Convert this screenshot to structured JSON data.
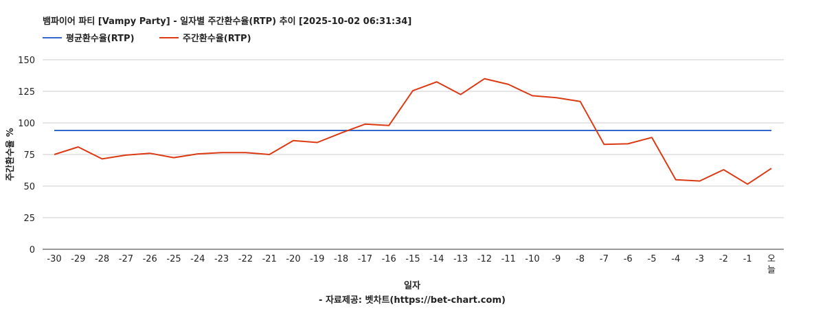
{
  "chart_data": {
    "type": "line",
    "title": "뱀파이어 파티 [Vampy Party] - 일자별 주간환수율(RTP) 추이 [2025-10-02 06:31:34]",
    "xlabel": "일자",
    "ylabel": "주간환수율 %",
    "ylim": [
      0,
      150
    ],
    "yticks": [
      "0",
      "25",
      "50",
      "75",
      "100",
      "125",
      "150"
    ],
    "grid": true,
    "legend_position": "top-left",
    "categories": [
      "-30",
      "-29",
      "-28",
      "-27",
      "-26",
      "-25",
      "-24",
      "-23",
      "-22",
      "-21",
      "-20",
      "-19",
      "-18",
      "-17",
      "-16",
      "-15",
      "-14",
      "-13",
      "-12",
      "-11",
      "-10",
      "-9",
      "-8",
      "-7",
      "-6",
      "-5",
      "-4",
      "-3",
      "-2",
      "-1",
      "오늘"
    ],
    "series": [
      {
        "name": "평균환수율(RTP)",
        "color": "#3366cc",
        "values": [
          94,
          94,
          94,
          94,
          94,
          94,
          94,
          94,
          94,
          94,
          94,
          94,
          94,
          94,
          94,
          94,
          94,
          94,
          94,
          94,
          94,
          94,
          94,
          94,
          94,
          94,
          94,
          94,
          94,
          94,
          94
        ]
      },
      {
        "name": "주간환수율(RTP)",
        "color": "#dc3912",
        "values": [
          75,
          81,
          71.5,
          74.5,
          76,
          72.5,
          75.5,
          76.5,
          76.5,
          75,
          86,
          84.5,
          92,
          99,
          98,
          125.5,
          132.5,
          122.5,
          135,
          130.5,
          121.5,
          120,
          117,
          83,
          83.5,
          88.5,
          55,
          54,
          63,
          51.5,
          64
        ]
      }
    ]
  },
  "footer": "- 자료제공: 벳차트(https://bet-chart.com)"
}
